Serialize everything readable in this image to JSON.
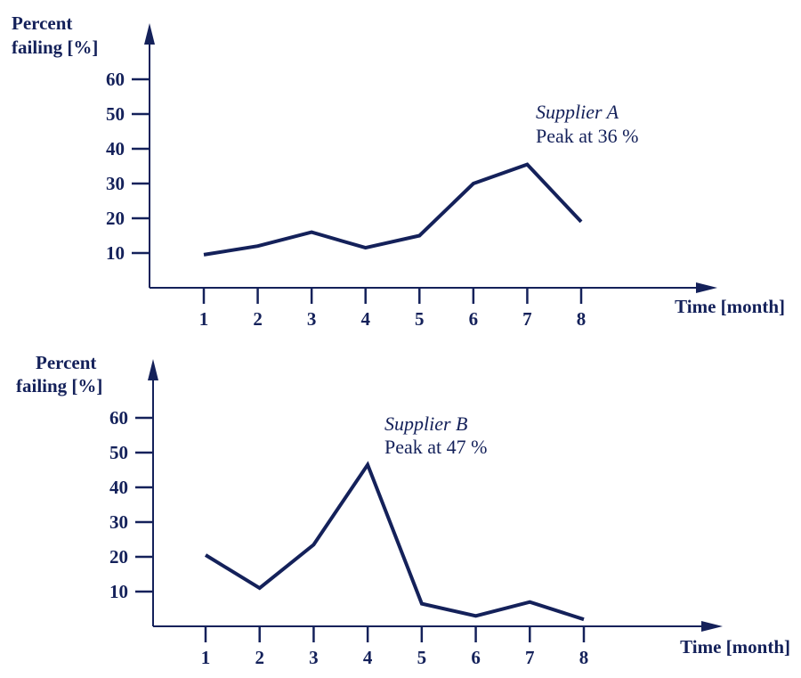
{
  "colors": {
    "ink": "#14215a",
    "background": "#ffffff"
  },
  "chart_data": [
    {
      "type": "line",
      "ylabel_line1": "Percent",
      "ylabel_line2": "failing [%]",
      "xlabel": "Time [month]",
      "x": [
        1,
        2,
        3,
        4,
        5,
        6,
        7,
        8
      ],
      "x_tick_labels": [
        "1",
        "2",
        "3",
        "4",
        "5",
        "6",
        "7",
        "8"
      ],
      "y_ticks": [
        10,
        20,
        30,
        40,
        50,
        60
      ],
      "y_tick_labels": [
        "10",
        "20",
        "30",
        "40",
        "50",
        "60"
      ],
      "ylim": [
        0,
        60
      ],
      "grid": false,
      "series": [
        {
          "values": [
            9.5,
            12,
            16,
            11.5,
            15,
            30,
            35.5,
            19
          ]
        }
      ],
      "annotation": {
        "name": "Supplier A",
        "peak": "Peak at 36 %"
      }
    },
    {
      "type": "line",
      "ylabel_line1": "Percent",
      "ylabel_line2": "failing [%]",
      "xlabel": "Time [month]",
      "x": [
        1,
        2,
        3,
        4,
        5,
        6,
        7,
        8
      ],
      "x_tick_labels": [
        "1",
        "2",
        "3",
        "4",
        "5",
        "6",
        "7",
        "8"
      ],
      "y_ticks": [
        10,
        20,
        30,
        40,
        50,
        60
      ],
      "y_tick_labels": [
        "10",
        "20",
        "30",
        "40",
        "50",
        "60"
      ],
      "ylim": [
        0,
        60
      ],
      "grid": false,
      "series": [
        {
          "values": [
            20.5,
            11,
            23.5,
            46.5,
            6.5,
            3,
            7,
            2
          ]
        }
      ],
      "annotation": {
        "name": "Supplier B",
        "peak": "Peak at 47 %"
      }
    }
  ]
}
